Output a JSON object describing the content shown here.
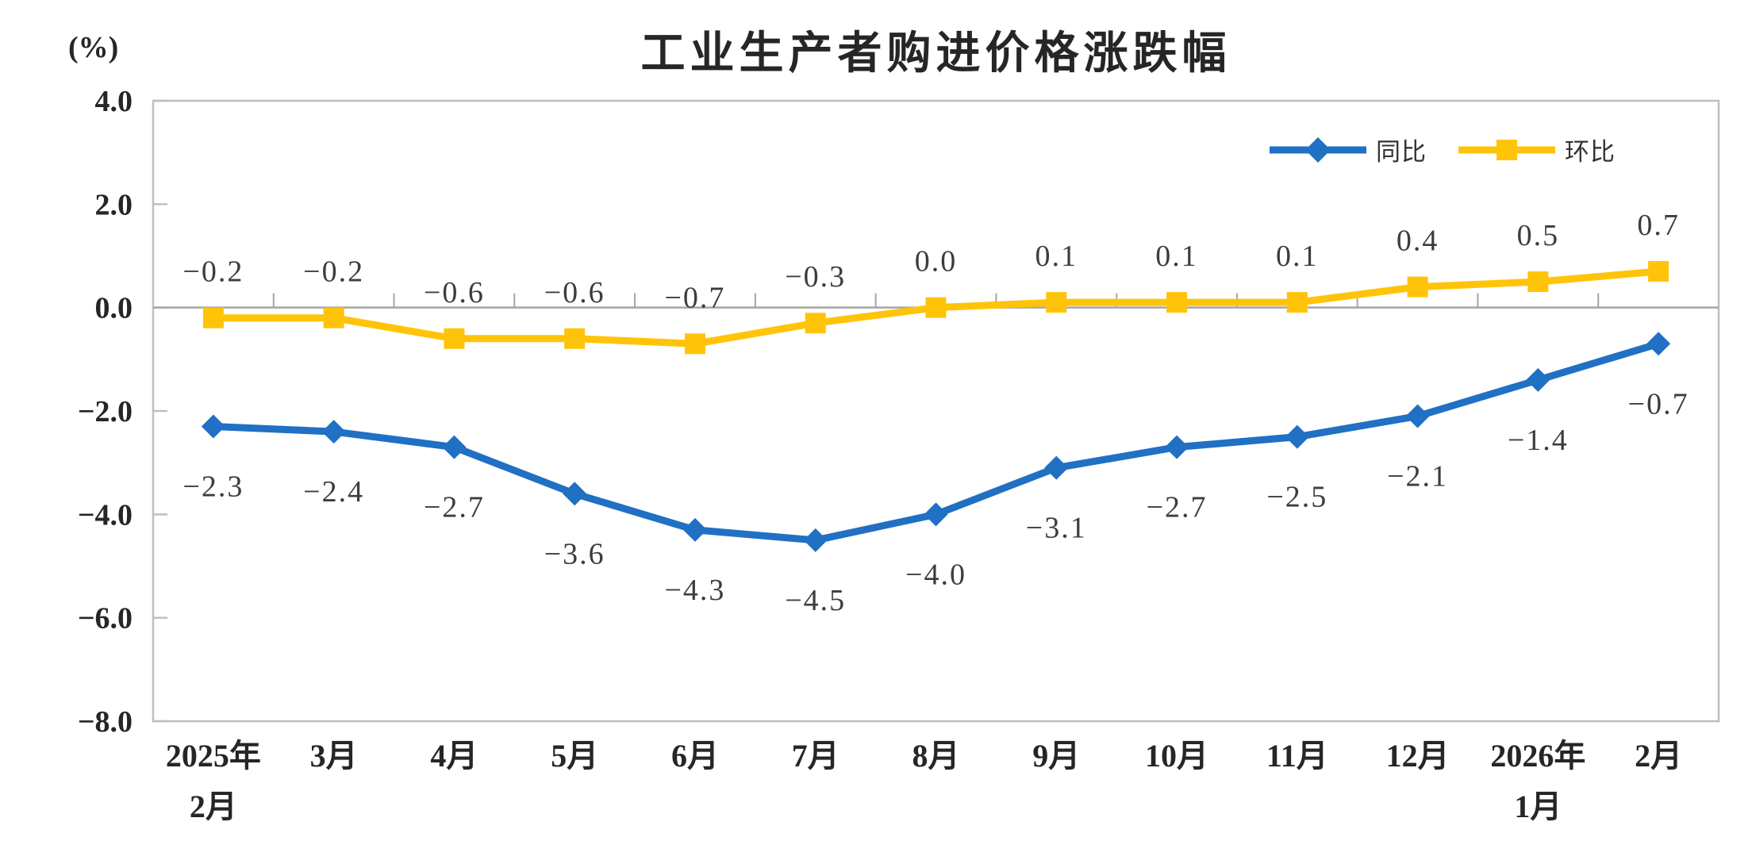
{
  "chart": {
    "title": "工业生产者购进价格涨跌幅",
    "y_axis_unit": "(%)"
  },
  "chart_data": {
    "type": "line",
    "title": "工业生产者购进价格涨跌幅",
    "y_unit_label": "(%)",
    "categories": [
      "2025年|2月",
      "3月",
      "4月",
      "5月",
      "6月",
      "7月",
      "8月",
      "9月",
      "10月",
      "11月",
      "12月",
      "2026年|1月",
      "2月"
    ],
    "series": [
      {
        "name": "同比",
        "color": "#2070C4",
        "marker": "diamond",
        "label_position": "below",
        "values": [
          -2.3,
          -2.4,
          -2.7,
          -3.6,
          -4.3,
          -4.5,
          -4.0,
          -3.1,
          -2.7,
          -2.5,
          -2.1,
          -1.4,
          -0.7
        ]
      },
      {
        "name": "环比",
        "color": "#FFC40A",
        "marker": "square",
        "label_position": "above",
        "values": [
          -0.2,
          -0.2,
          -0.6,
          -0.6,
          -0.7,
          -0.3,
          0.0,
          0.1,
          0.1,
          0.1,
          0.4,
          0.5,
          0.7
        ]
      }
    ],
    "ylim": [
      -8.0,
      4.0
    ],
    "yticks": [
      4.0,
      2.0,
      0.0,
      -2.0,
      -4.0,
      -6.0,
      -8.0
    ],
    "ytick_step": 2.0,
    "grid": false,
    "zero_line": true,
    "legend_position": "top-right",
    "colors": {
      "axis_border": "#BFBFBF",
      "zero_line": "#A6A6A6",
      "axis_text": "#262626",
      "data_label": "#3D3D3D",
      "background": "#FFFFFF"
    }
  }
}
